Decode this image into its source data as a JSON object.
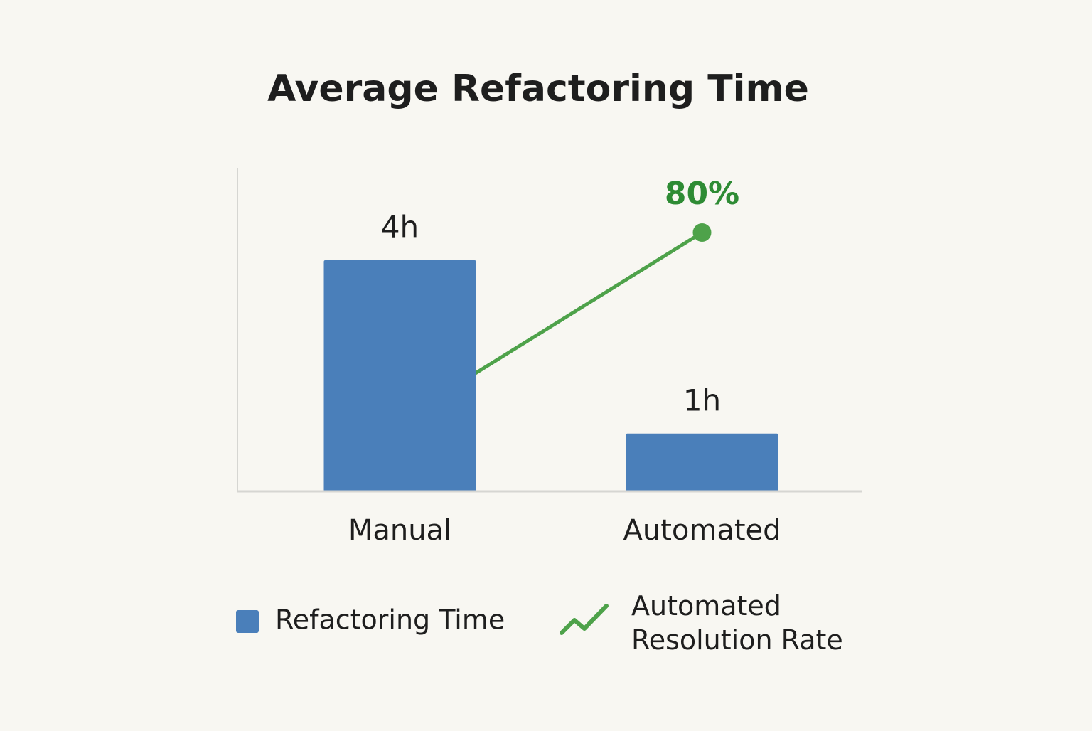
{
  "chart_data": {
    "type": "bar",
    "title": "Average Refactoring Time",
    "categories": [
      "Manual",
      "Automated"
    ],
    "series": [
      {
        "name": "Refactoring Time",
        "type": "bar",
        "color": "#4a7fba",
        "values": [
          4,
          1
        ],
        "value_labels": [
          "4h",
          "1h"
        ]
      },
      {
        "name": "Automated Resolution Rate",
        "type": "line",
        "axis": "y2",
        "color": "#4ea24a",
        "values": [
          22,
          80
        ],
        "value_labels": [
          null,
          "80%"
        ]
      }
    ],
    "ylim": [
      0,
      5.6
    ],
    "y2lim": [
      0,
      100
    ],
    "grid": false,
    "legend": "bottom"
  }
}
